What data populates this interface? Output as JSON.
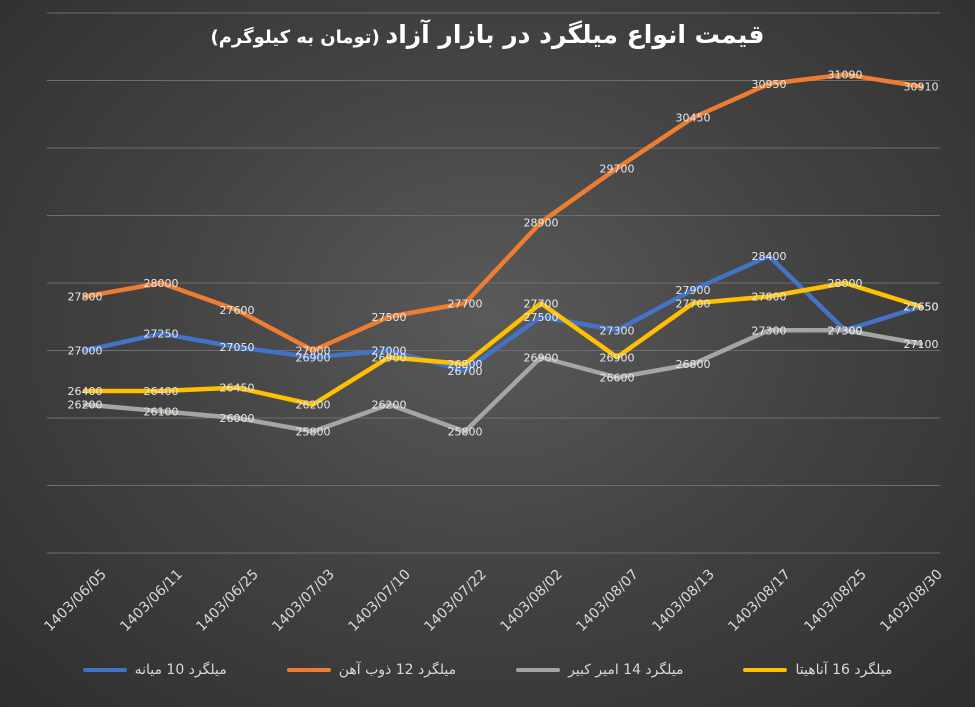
{
  "chart_data": {
    "type": "line",
    "title": "قیمت انواع میلگرد در بازار آزاد",
    "subtitle": "(تومان به کیلوگرم)",
    "categories": [
      "1403/06/05",
      "1403/06/11",
      "1403/06/25",
      "1403/07/03",
      "1403/07/10",
      "1403/07/22",
      "1403/08/02",
      "1403/08/07",
      "1403/08/13",
      "1403/08/17",
      "1403/08/25",
      "1403/08/30"
    ],
    "ylim": [
      24000,
      32000
    ],
    "grid": true,
    "legend_position": "bottom",
    "series": [
      {
        "name": "میلگرد 10 میانه",
        "color": "#4472c4",
        "values": [
          27000,
          27250,
          27050,
          26900,
          27000,
          26700,
          27500,
          27300,
          27900,
          28400,
          27300,
          27650
        ]
      },
      {
        "name": "میلگرد  12 ذوب آهن",
        "color": "#ed7d31",
        "values": [
          27800,
          28000,
          27600,
          27000,
          27500,
          27700,
          28900,
          29700,
          30450,
          30950,
          31090,
          30910
        ]
      },
      {
        "name": "میلگرد 14 امیر کبیر",
        "color": "#a5a5a5",
        "values": [
          26200,
          26100,
          26000,
          25800,
          26200,
          25800,
          26900,
          26600,
          26800,
          27300,
          27300,
          27100
        ]
      },
      {
        "name": "میلگرد 16 آناهیتا",
        "color": "#ffc000",
        "values": [
          26400,
          26400,
          26450,
          26200,
          26900,
          26800,
          27700,
          26900,
          27700,
          27800,
          28000,
          27650
        ]
      }
    ]
  }
}
